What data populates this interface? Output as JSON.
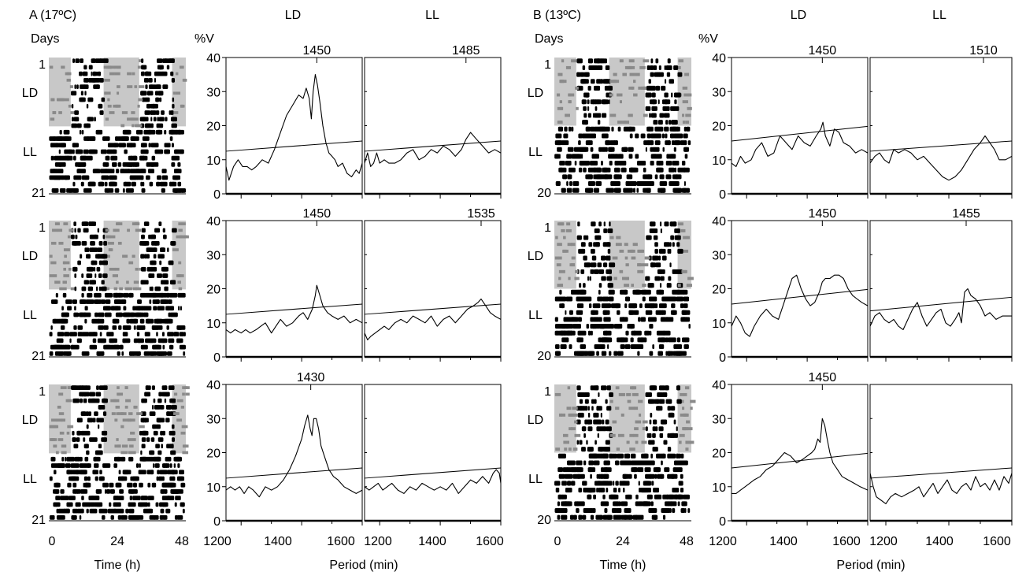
{
  "colors": {
    "ink": "#000000",
    "shade": "#c8c8c8",
    "gray_marks": "#8a8a8a",
    "background": "#ffffff"
  },
  "chart_data": [
    {
      "type": "figure-panel",
      "title": "A (17ºC)",
      "actogram": {
        "ylabel": "Days",
        "xlabel": "Time (h)",
        "xticks": [
          "0",
          "24",
          "48"
        ],
        "day_first": "1",
        "day_last": "21",
        "phases": [
          "LD",
          "LL"
        ],
        "xlim": [
          0,
          48
        ]
      },
      "periodogram": {
        "ylabel": "%V",
        "xlabel": "Period (min)",
        "xticks": [
          "1200",
          "1400",
          "1600"
        ],
        "yticks": [
          "0",
          "10",
          "20",
          "30",
          "40"
        ],
        "column_labels": [
          "LD",
          "LL"
        ],
        "xlim": [
          1150,
          1600
        ],
        "ylim": [
          0,
          40
        ]
      }
    },
    {
      "type": "figure-panel",
      "title": "B (13ºC)",
      "actogram": {
        "ylabel": "Days",
        "xlabel": "Time (h)",
        "xticks": [
          "0",
          "24",
          "48"
        ],
        "day_first": "1",
        "day_last": "20",
        "phases": [
          "LD",
          "LL"
        ],
        "xlim": [
          0,
          48
        ]
      },
      "periodogram": {
        "ylabel": "%V",
        "xlabel": "Period (min)",
        "xticks": [
          "1200",
          "1400",
          "1600"
        ],
        "yticks": [
          "0",
          "10",
          "20",
          "30",
          "40"
        ],
        "column_labels": [
          "LD",
          "LL"
        ],
        "xlim": [
          1150,
          1600
        ],
        "ylim": [
          0,
          40
        ]
      }
    }
  ],
  "periodograms": [
    {
      "id": "A1-LD",
      "peak_label": "1450",
      "peak_x": 1450,
      "threshold": [
        12.5,
        15.5
      ],
      "x": [
        1150,
        1160,
        1175,
        1190,
        1205,
        1220,
        1235,
        1250,
        1270,
        1290,
        1310,
        1330,
        1350,
        1370,
        1390,
        1405,
        1415,
        1425,
        1432,
        1438,
        1445,
        1452,
        1460,
        1470,
        1480,
        1490,
        1500,
        1510,
        1520,
        1535,
        1550,
        1565,
        1580,
        1590,
        1600
      ],
      "y": [
        8,
        4,
        8,
        10,
        8,
        8,
        7,
        8,
        10,
        9,
        13,
        18,
        23,
        26,
        29,
        28,
        31,
        28,
        22,
        30,
        35,
        32,
        27,
        20,
        15,
        12,
        11,
        10,
        8,
        9,
        6,
        5,
        7,
        6,
        9
      ]
    },
    {
      "id": "A1-LL",
      "peak_label": "1485",
      "peak_x": 1485,
      "threshold": [
        12.5,
        15.5
      ],
      "x": [
        1150,
        1160,
        1170,
        1180,
        1190,
        1200,
        1215,
        1230,
        1250,
        1270,
        1290,
        1310,
        1330,
        1350,
        1370,
        1390,
        1410,
        1430,
        1450,
        1470,
        1485,
        1500,
        1520,
        1540,
        1560,
        1580,
        1600
      ],
      "y": [
        9,
        12,
        8,
        9,
        12,
        9,
        10,
        9,
        9,
        10,
        12,
        13,
        10,
        11,
        13,
        12,
        14,
        13,
        11,
        13,
        16,
        18,
        16,
        14,
        12,
        13,
        12
      ]
    },
    {
      "id": "A2-LD",
      "peak_label": "1450",
      "peak_x": 1450,
      "threshold": [
        12.5,
        15.5
      ],
      "x": [
        1150,
        1165,
        1180,
        1200,
        1215,
        1230,
        1250,
        1265,
        1280,
        1300,
        1315,
        1330,
        1350,
        1370,
        1390,
        1405,
        1420,
        1435,
        1445,
        1450,
        1460,
        1470,
        1485,
        1500,
        1520,
        1540,
        1560,
        1580,
        1600
      ],
      "y": [
        8,
        7,
        8,
        7,
        8,
        7,
        8,
        9,
        10,
        7,
        9,
        11,
        9,
        10,
        12,
        13,
        11,
        14,
        18,
        21,
        18,
        15,
        13,
        12,
        11,
        12,
        10,
        11,
        10
      ]
    },
    {
      "id": "A2-LL",
      "peak_label": "1535",
      "peak_x": 1535,
      "threshold": [
        12.5,
        15.5
      ],
      "x": [
        1150,
        1160,
        1170,
        1185,
        1200,
        1215,
        1230,
        1250,
        1270,
        1290,
        1310,
        1330,
        1350,
        1370,
        1390,
        1410,
        1430,
        1450,
        1470,
        1490,
        1510,
        1525,
        1535,
        1550,
        1565,
        1580,
        1600
      ],
      "y": [
        7,
        5,
        6,
        7,
        8,
        9,
        8,
        10,
        11,
        10,
        12,
        11,
        10,
        12,
        9,
        11,
        12,
        10,
        12,
        14,
        15,
        16,
        17,
        15,
        13,
        12,
        11
      ]
    },
    {
      "id": "A3-LD",
      "peak_label": "1430",
      "peak_x": 1430,
      "threshold": [
        12.5,
        15.5
      ],
      "x": [
        1150,
        1165,
        1180,
        1195,
        1210,
        1225,
        1240,
        1260,
        1280,
        1300,
        1320,
        1340,
        1360,
        1380,
        1400,
        1410,
        1420,
        1428,
        1434,
        1440,
        1448,
        1456,
        1464,
        1475,
        1490,
        1505,
        1520,
        1540,
        1560,
        1580,
        1600
      ],
      "y": [
        9,
        10,
        9,
        10,
        8,
        10,
        9,
        7,
        10,
        9,
        10,
        12,
        15,
        19,
        24,
        28,
        31,
        27,
        25,
        30,
        30,
        27,
        22,
        19,
        15,
        13,
        12,
        10,
        9,
        8,
        9
      ]
    },
    {
      "id": "A3-LL",
      "peak_label": "",
      "peak_x": null,
      "threshold": [
        12.5,
        15.5
      ],
      "x": [
        1150,
        1165,
        1180,
        1195,
        1210,
        1225,
        1240,
        1260,
        1280,
        1300,
        1320,
        1340,
        1360,
        1380,
        1400,
        1420,
        1440,
        1460,
        1480,
        1500,
        1520,
        1540,
        1560,
        1575,
        1585,
        1595,
        1600
      ],
      "y": [
        10,
        9,
        10,
        11,
        9,
        10,
        11,
        9,
        8,
        10,
        9,
        11,
        10,
        9,
        10,
        9,
        11,
        8,
        10,
        12,
        11,
        13,
        11,
        14,
        15,
        14,
        11
      ]
    },
    {
      "id": "B1-LD",
      "peak_label": "1450",
      "peak_x": 1450,
      "threshold": [
        15.5,
        19.8
      ],
      "x": [
        1150,
        1165,
        1180,
        1195,
        1215,
        1230,
        1250,
        1270,
        1290,
        1310,
        1330,
        1350,
        1370,
        1390,
        1410,
        1430,
        1445,
        1452,
        1460,
        1475,
        1490,
        1505,
        1520,
        1540,
        1560,
        1580,
        1600
      ],
      "y": [
        9,
        8,
        11,
        9,
        10,
        13,
        15,
        11,
        12,
        17,
        15,
        13,
        17,
        15,
        14,
        17,
        19,
        21,
        17,
        14,
        19,
        18,
        15,
        14,
        12,
        13,
        12
      ]
    },
    {
      "id": "B1-LL",
      "peak_label": "1510",
      "peak_x": 1510,
      "threshold": [
        12.5,
        15.5
      ],
      "x": [
        1150,
        1165,
        1180,
        1195,
        1210,
        1225,
        1240,
        1260,
        1280,
        1300,
        1320,
        1340,
        1360,
        1380,
        1400,
        1420,
        1440,
        1460,
        1480,
        1500,
        1515,
        1530,
        1545,
        1560,
        1580,
        1600
      ],
      "y": [
        9,
        11,
        12,
        10,
        9,
        13,
        12,
        13,
        12,
        10,
        11,
        9,
        7,
        5,
        4,
        5,
        7,
        10,
        13,
        15,
        17,
        15,
        13,
        10,
        10,
        11
      ]
    },
    {
      "id": "B2-LD",
      "peak_label": "1450",
      "peak_x": 1450,
      "threshold": [
        15.5,
        19.8
      ],
      "x": [
        1150,
        1165,
        1180,
        1195,
        1210,
        1225,
        1245,
        1265,
        1285,
        1305,
        1320,
        1335,
        1350,
        1365,
        1380,
        1395,
        1410,
        1425,
        1440,
        1450,
        1460,
        1475,
        1490,
        1505,
        1520,
        1535,
        1550,
        1565,
        1580,
        1600
      ],
      "y": [
        9,
        12,
        10,
        7,
        6,
        9,
        12,
        14,
        12,
        11,
        15,
        19,
        23,
        24,
        20,
        17,
        15,
        16,
        19,
        22,
        23,
        23,
        24,
        24,
        23,
        20,
        18,
        17,
        16,
        15
      ]
    },
    {
      "id": "B2-LL",
      "peak_label": "1455",
      "peak_x": 1455,
      "threshold": [
        13.5,
        17.5
      ],
      "x": [
        1150,
        1165,
        1180,
        1195,
        1210,
        1225,
        1240,
        1255,
        1270,
        1285,
        1300,
        1315,
        1330,
        1345,
        1360,
        1375,
        1390,
        1405,
        1420,
        1432,
        1440,
        1450,
        1460,
        1470,
        1485,
        1500,
        1515,
        1530,
        1550,
        1570,
        1585,
        1600
      ],
      "y": [
        9,
        12,
        13,
        11,
        10,
        11,
        9,
        8,
        11,
        14,
        16,
        12,
        9,
        11,
        13,
        14,
        10,
        9,
        11,
        13,
        10,
        19,
        20,
        18,
        17,
        15,
        12,
        13,
        11,
        12,
        12,
        12
      ]
    },
    {
      "id": "B3-LD",
      "peak_label": "1450",
      "peak_x": 1450,
      "threshold": [
        15.5,
        19.8
      ],
      "x": [
        1150,
        1165,
        1180,
        1195,
        1210,
        1225,
        1245,
        1265,
        1285,
        1305,
        1325,
        1345,
        1365,
        1385,
        1400,
        1415,
        1425,
        1435,
        1443,
        1450,
        1458,
        1466,
        1475,
        1485,
        1500,
        1515,
        1535,
        1555,
        1575,
        1600
      ],
      "y": [
        8,
        8,
        9,
        10,
        11,
        12,
        13,
        15,
        16,
        18,
        20,
        19,
        17,
        18,
        19,
        20,
        21,
        24,
        23,
        30,
        28,
        24,
        20,
        17,
        15,
        13,
        12,
        11,
        10,
        9
      ]
    },
    {
      "id": "B3-LL",
      "peak_label": "",
      "peak_x": null,
      "threshold": [
        12.5,
        15.5
      ],
      "x": [
        1150,
        1160,
        1170,
        1185,
        1200,
        1215,
        1230,
        1250,
        1270,
        1290,
        1305,
        1320,
        1335,
        1350,
        1365,
        1380,
        1395,
        1410,
        1425,
        1440,
        1455,
        1470,
        1485,
        1500,
        1515,
        1530,
        1545,
        1560,
        1575,
        1590,
        1600
      ],
      "y": [
        14,
        10,
        7,
        6,
        5,
        7,
        8,
        7,
        8,
        9,
        10,
        7,
        9,
        11,
        8,
        10,
        12,
        9,
        8,
        10,
        11,
        9,
        13,
        10,
        11,
        9,
        12,
        9,
        13,
        11,
        14
      ]
    }
  ]
}
